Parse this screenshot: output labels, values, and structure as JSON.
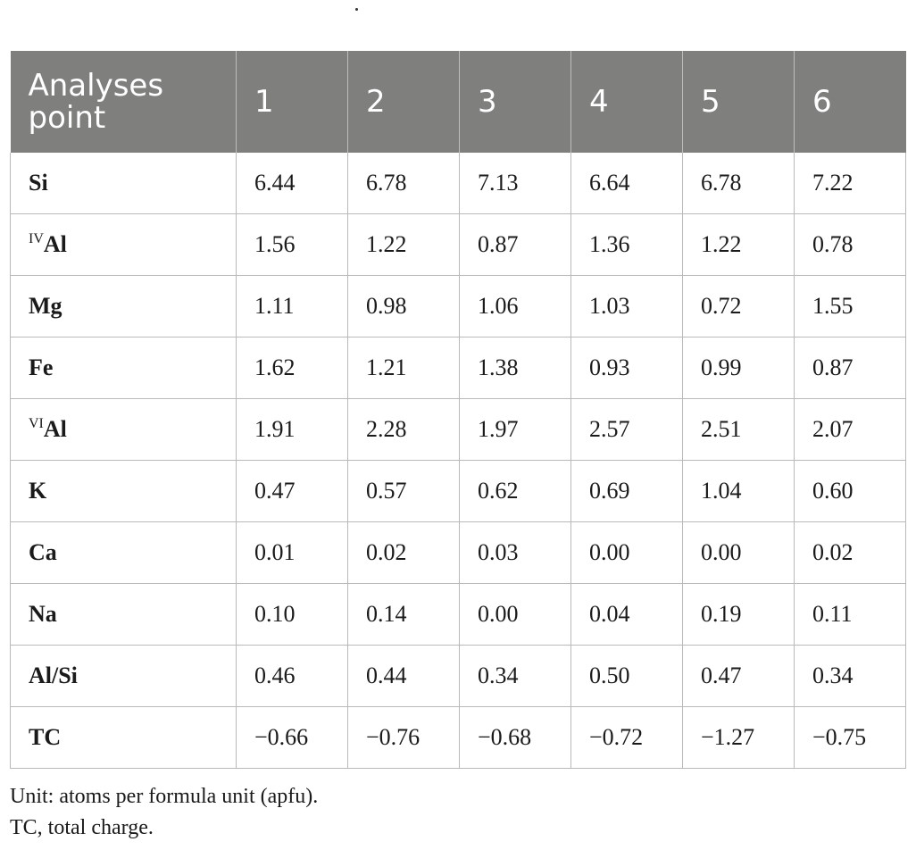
{
  "table": {
    "header": [
      "Analyses point",
      "1",
      "2",
      "3",
      "4",
      "5",
      "6"
    ],
    "rows": [
      {
        "sup": "",
        "label": "Si",
        "values": [
          "6.44",
          "6.78",
          "7.13",
          "6.64",
          "6.78",
          "7.22"
        ]
      },
      {
        "sup": "IV",
        "label": "Al",
        "values": [
          "1.56",
          "1.22",
          "0.87",
          "1.36",
          "1.22",
          "0.78"
        ]
      },
      {
        "sup": "",
        "label": "Mg",
        "values": [
          "1.11",
          "0.98",
          "1.06",
          "1.03",
          "0.72",
          "1.55"
        ]
      },
      {
        "sup": "",
        "label": "Fe",
        "values": [
          "1.62",
          "1.21",
          "1.38",
          "0.93",
          "0.99",
          "0.87"
        ]
      },
      {
        "sup": "VI",
        "label": "Al",
        "values": [
          "1.91",
          "2.28",
          "1.97",
          "2.57",
          "2.51",
          "2.07"
        ]
      },
      {
        "sup": "",
        "label": "K",
        "values": [
          "0.47",
          "0.57",
          "0.62",
          "0.69",
          "1.04",
          "0.60"
        ]
      },
      {
        "sup": "",
        "label": "Ca",
        "values": [
          "0.01",
          "0.02",
          "0.03",
          "0.00",
          "0.00",
          "0.02"
        ]
      },
      {
        "sup": "",
        "label": "Na",
        "values": [
          "0.10",
          "0.14",
          "0.00",
          "0.04",
          "0.19",
          "0.11"
        ]
      },
      {
        "sup": "",
        "label": "Al/Si",
        "values": [
          "0.46",
          "0.44",
          "0.34",
          "0.50",
          "0.47",
          "0.34"
        ]
      },
      {
        "sup": "",
        "label": "TC",
        "values": [
          "−0.66",
          "−0.76",
          "−0.68",
          "−0.72",
          "−1.27",
          "−0.75"
        ]
      }
    ]
  },
  "notes": {
    "line1": "Unit: atoms per formula unit (apfu).",
    "line2": "TC, total charge."
  },
  "colors": {
    "header_bg": "#7f807e",
    "header_text": "#ffffff",
    "grid": "#b9b9b9"
  }
}
